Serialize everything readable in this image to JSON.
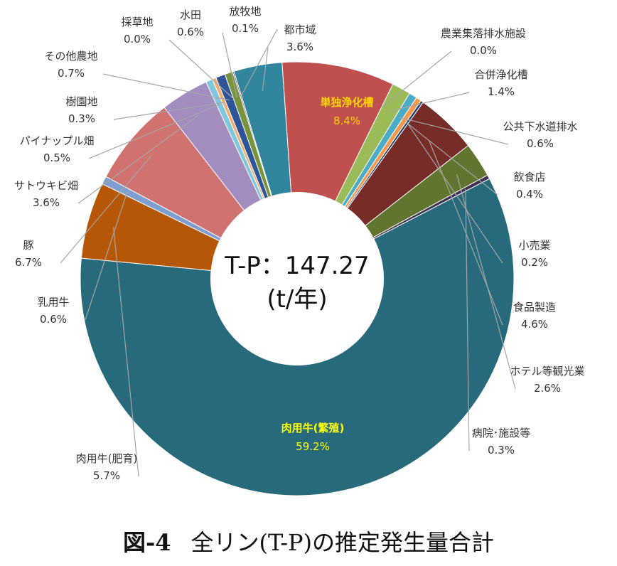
{
  "chart_data": {
    "type": "pie",
    "donut": true,
    "center_label": [
      "T-P：147.27",
      "(t/年)"
    ],
    "slices": [
      {
        "name": "単独浄化槽",
        "value": 8.4,
        "color": "#c0504d",
        "label_inside": true
      },
      {
        "name": "農業集落排水施設",
        "value": 0.0,
        "color": "#9bbb59"
      },
      {
        "name": "合併浄化槽",
        "value": 1.4,
        "color": "#9bbb59"
      },
      {
        "name": "公共下水道排水",
        "value": 0.6,
        "color": "#4bacc6"
      },
      {
        "name": "飲食店",
        "value": 0.4,
        "color": "#f79646"
      },
      {
        "name": "小売業",
        "value": 0.2,
        "color": "#1f3f6e"
      },
      {
        "name": "食品製造",
        "value": 4.6,
        "color": "#772c2a"
      },
      {
        "name": "ホテル等観光業",
        "value": 2.6,
        "color": "#5f7530"
      },
      {
        "name": "病院･施設等",
        "value": 0.3,
        "color": "#3f3151"
      },
      {
        "name": "肉用牛(繁殖)",
        "value": 59.2,
        "color": "#276a7c",
        "label_inside": true
      },
      {
        "name": "肉用牛(肥育)",
        "value": 5.7,
        "color": "#b65708"
      },
      {
        "name": "乳用牛",
        "value": 0.6,
        "color": "#7f9fd0"
      },
      {
        "name": "豚",
        "value": 6.7,
        "color": "#d07370"
      },
      {
        "name": "サトウキビ畑",
        "value": 3.6,
        "color": "#a28cc0"
      },
      {
        "name": "パイナップル畑",
        "value": 0.5,
        "color": "#7fc8dc"
      },
      {
        "name": "樹園地",
        "value": 0.3,
        "color": "#f4ac70"
      },
      {
        "name": "その他農地",
        "value": 0.7,
        "color": "#2f5597"
      },
      {
        "name": "採草地",
        "value": 0.0,
        "color": "#c3d69b"
      },
      {
        "name": "水田",
        "value": 0.6,
        "color": "#77933c"
      },
      {
        "name": "放牧地",
        "value": 0.1,
        "color": "#604a7b"
      },
      {
        "name": "都市域",
        "value": 3.6,
        "color": "#31859c"
      }
    ],
    "unit": "%"
  },
  "caption": {
    "figure": "図-4",
    "title": "全リン(T-P)の推定発生量合計"
  }
}
